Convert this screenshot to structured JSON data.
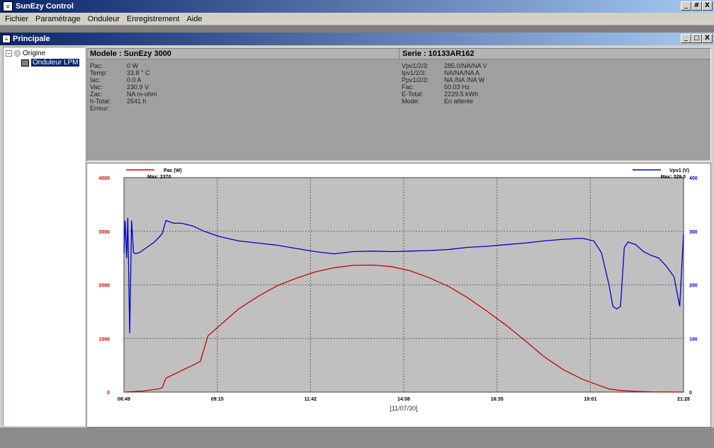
{
  "window": {
    "title": "SunEzy Control",
    "buttons": [
      "_",
      "#",
      "X"
    ]
  },
  "menu": [
    "Fichier",
    "Paramétrage",
    "Onduleur",
    "Enregistrement",
    "Aide"
  ],
  "mdi": {
    "title": "Principale",
    "buttons": [
      "_",
      "□",
      "X"
    ]
  },
  "tree": {
    "root": "Origine",
    "child": "Onduleur LPM"
  },
  "info": {
    "model": "Modele : SunEzy 3000",
    "serial": "Serie : 10133AR162",
    "left": [
      {
        "label": "Pac:",
        "value": "0 W"
      },
      {
        "label": "Temp:",
        "value": "33.8 ° C"
      },
      {
        "label": "Iac:",
        "value": "0.0 A"
      },
      {
        "label": "Vac:",
        "value": "230.9 V"
      },
      {
        "label": "Zac:",
        "value": "NA m-ohm"
      },
      {
        "label": "h-Total:",
        "value": "2641 h"
      },
      {
        "label": "Erreur:",
        "value": ""
      }
    ],
    "right": [
      {
        "label": "Vpv1/2/3:",
        "value": "285.0/NA/NA V"
      },
      {
        "label": "Ipv1/2/3:",
        "value": "NA/NA/NA A"
      },
      {
        "label": "Ppv1/2/3:",
        "value": "NA /NA /NA W"
      },
      {
        "label": "Fac:",
        "value": "50.03 Hz"
      },
      {
        "label": "E-Total:",
        "value": "2229.5 kWh"
      },
      {
        "label": "Mode:",
        "value": "En attente"
      }
    ]
  },
  "chart_data": {
    "type": "line",
    "x_ticks": [
      "06:49",
      "09:15",
      "11:42",
      "14:08",
      "16:35",
      "19:01",
      "21:28"
    ],
    "xlabel": "[11/07/30]",
    "left_axis": {
      "ticks": [
        "0",
        "1000",
        "2000",
        "3000",
        "4000"
      ],
      "ylim": [
        0,
        4000
      ],
      "color": "#cc0000"
    },
    "right_axis": {
      "ticks": [
        "0",
        "100",
        "200",
        "300",
        "400"
      ],
      "ylim": [
        0,
        400
      ],
      "color": "#0000cc"
    },
    "grid": true,
    "legend": {
      "placement": "top",
      "left": {
        "name": "Pac (W)",
        "max": "Max:  2370"
      },
      "right": {
        "name": "Vpv1 (V)",
        "max": "Max:  329.0"
      }
    },
    "series": [
      {
        "name": "Pac (W)",
        "axis": "left",
        "color": "#cc0000",
        "x": [
          0,
          0.5,
          0.9,
          1.0,
          1.1,
          1.3,
          1.8,
          2.0,
          2.2,
          2.6,
          3.0,
          3.5,
          4.0,
          4.5,
          5.0,
          5.5,
          6.0,
          6.5,
          7.0,
          7.5,
          8.0,
          8.5,
          9.0,
          9.5,
          10.0,
          10.5,
          11.0,
          11.5,
          12.0,
          12.5,
          12.7,
          13.0,
          13.4,
          13.8,
          14.2,
          14.65
        ],
        "y": [
          0,
          20,
          60,
          80,
          260,
          330,
          500,
          570,
          1050,
          1300,
          1550,
          1780,
          1980,
          2120,
          2240,
          2320,
          2365,
          2370,
          2340,
          2260,
          2130,
          1970,
          1760,
          1510,
          1250,
          960,
          660,
          420,
          240,
          110,
          60,
          30,
          15,
          5,
          2,
          0
        ]
      },
      {
        "name": "Vpv1 (V)",
        "axis": "right",
        "color": "#0000cc",
        "x": [
          0,
          0.03,
          0.07,
          0.1,
          0.15,
          0.2,
          0.25,
          0.3,
          0.4,
          0.6,
          0.8,
          1.0,
          1.1,
          1.3,
          1.5,
          1.8,
          2.1,
          2.5,
          3.0,
          3.5,
          4.0,
          4.5,
          5.0,
          5.5,
          6.0,
          6.5,
          7.0,
          7.5,
          8.0,
          8.5,
          9.0,
          9.5,
          10.0,
          10.5,
          11.0,
          11.5,
          12.0,
          12.3,
          12.5,
          12.7,
          12.8,
          12.9,
          13.0,
          13.1,
          13.2,
          13.4,
          13.6,
          13.8,
          14.0,
          14.2,
          14.4,
          14.55,
          14.65
        ],
        "y": [
          260,
          320,
          250,
          325,
          110,
          320,
          260,
          258,
          260,
          270,
          280,
          295,
          320,
          315,
          315,
          310,
          300,
          290,
          282,
          278,
          274,
          268,
          262,
          258,
          262,
          263,
          262,
          263,
          264,
          266,
          270,
          272,
          275,
          278,
          282,
          285,
          287,
          282,
          260,
          200,
          160,
          155,
          160,
          270,
          280,
          275,
          262,
          255,
          250,
          235,
          215,
          160,
          295
        ]
      }
    ]
  },
  "statusbar": {
    "text": ""
  }
}
